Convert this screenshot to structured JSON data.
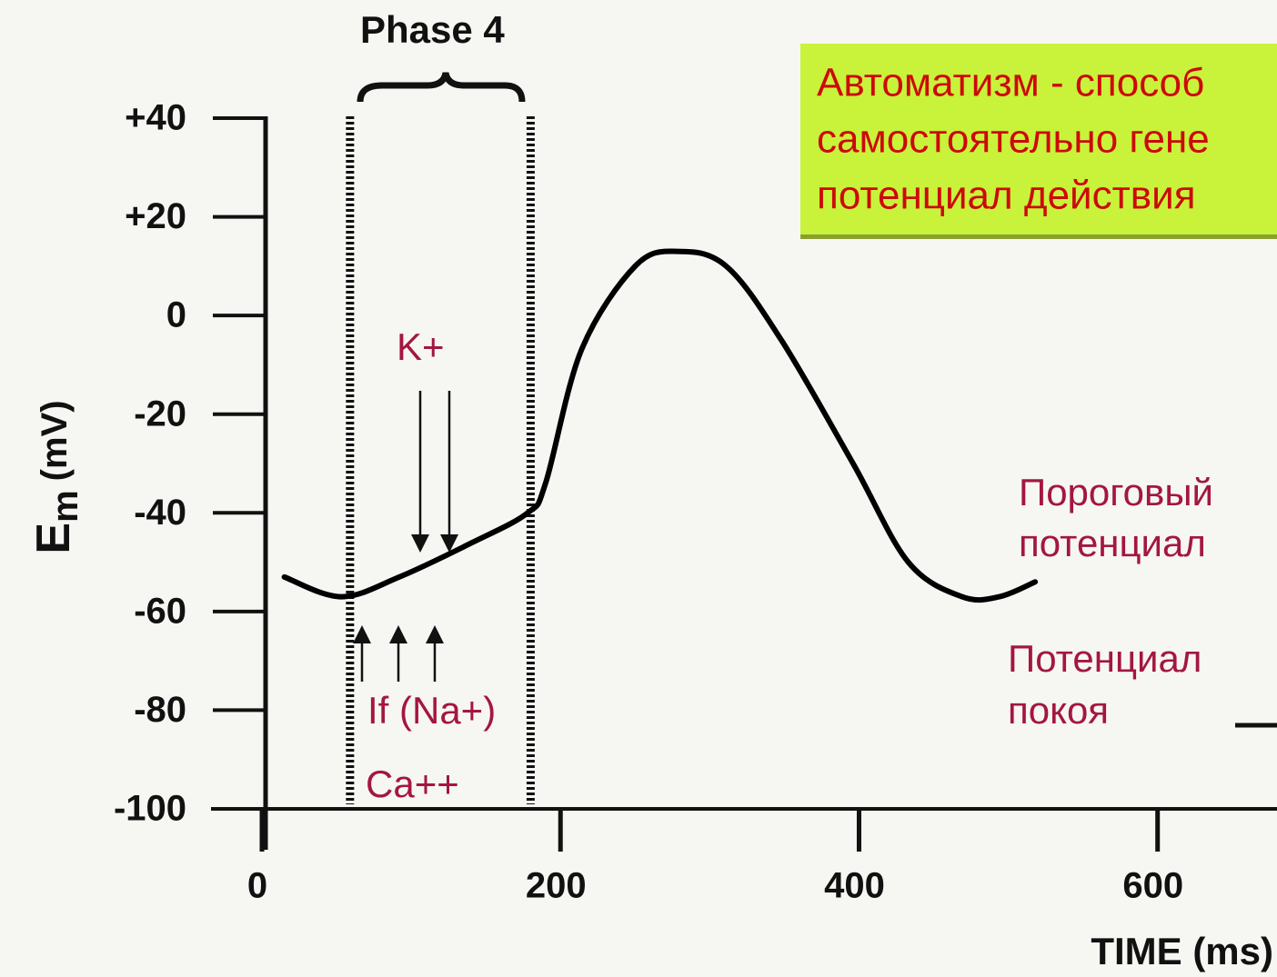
{
  "chart_data": {
    "type": "line",
    "title": "Phase 4",
    "ylabel_main": "E",
    "ylabel_sub": "m",
    "ylabel_unit": "(mV)",
    "xlabel": "TIME (ms)",
    "xlim": [
      0,
      680
    ],
    "ylim": [
      -100,
      40
    ],
    "xticks": [
      0,
      200,
      400,
      600
    ],
    "yticks": [
      {
        "value": 40,
        "label": "+40"
      },
      {
        "value": 20,
        "label": "+20"
      },
      0,
      -20,
      -40,
      -60,
      -80,
      -100
    ],
    "phase_bounds": [
      59,
      180
    ],
    "series": [
      {
        "name": "Em",
        "color": "#000000",
        "x": [
          15,
          53,
          92,
          141,
          178,
          190,
          214,
          250,
          278,
          311,
          348,
          396,
          433,
          469,
          494,
          518
        ],
        "values": [
          -53,
          -57,
          -53,
          -46,
          -40,
          -34,
          -7,
          10,
          13,
          10,
          -5,
          -30,
          -50,
          -57,
          -57,
          -54
        ]
      }
    ],
    "box_lines": [
      "Автоматизм - способ",
      "самостоятельно гене",
      "потенциал действия"
    ],
    "annotations": {
      "k": "K+",
      "if": "If (Na+)",
      "ca": "Ca++",
      "threshold": [
        "Пороговый",
        "потенциал"
      ],
      "rest": [
        "Потенциал",
        "покоя"
      ]
    }
  }
}
